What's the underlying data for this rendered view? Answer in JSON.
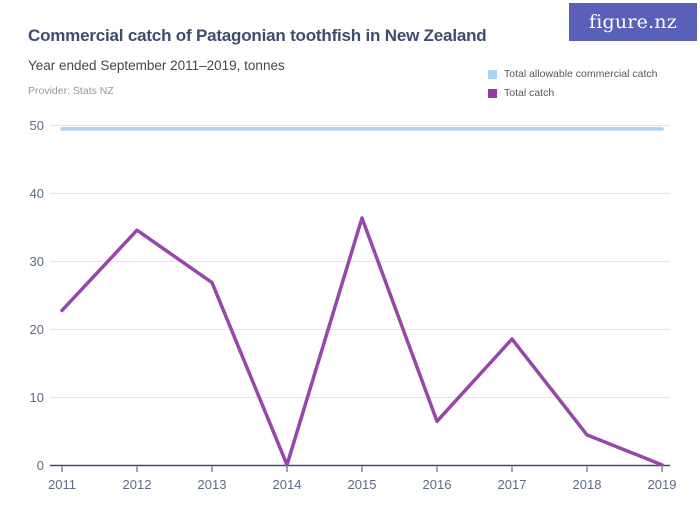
{
  "header": {
    "title": "Commercial catch of Patagonian toothfish in New Zealand",
    "subtitle": "Year ended September 2011–2019, tonnes",
    "provider": "Provider: Stats NZ",
    "logo_text": "figure.nz"
  },
  "colors": {
    "logo_bg": "#5a5fb8",
    "title_text": "#3e4d6d",
    "axis_label": "#5d6b85",
    "grid_line": "#e4e4e8",
    "axis_line": "#3e4d6d",
    "tacc_line": "#aad3f5",
    "catch_line": "#9747ab",
    "legend_marker_catch": "#8f3f9f"
  },
  "legend": [
    {
      "label": "Total allowable commercial catch",
      "color": "#aad3f5"
    },
    {
      "label": "Total catch",
      "color": "#8f3f9f"
    }
  ],
  "chart_data": {
    "type": "line",
    "title": "Commercial catch of Patagonian toothfish in New Zealand",
    "subtitle": "Year ended September 2011–2019, tonnes",
    "xlabel": "",
    "ylabel": "tonnes",
    "categories": [
      "2011",
      "2012",
      "2013",
      "2014",
      "2015",
      "2016",
      "2017",
      "2018",
      "2019"
    ],
    "series": [
      {
        "name": "Total allowable commercial catch",
        "color": "#aad3f5",
        "values": [
          49.5,
          49.5,
          49.5,
          49.5,
          49.5,
          49.5,
          49.5,
          49.5,
          49.5
        ]
      },
      {
        "name": "Total catch",
        "color": "#9747ab",
        "values": [
          22.8,
          34.6,
          26.9,
          0.1,
          36.4,
          6.5,
          18.6,
          4.5,
          0.1
        ]
      }
    ],
    "ylim": [
      0,
      50
    ],
    "yticks": [
      0,
      10,
      20,
      30,
      40,
      50
    ],
    "grid": true,
    "legend_position": "top-right"
  }
}
